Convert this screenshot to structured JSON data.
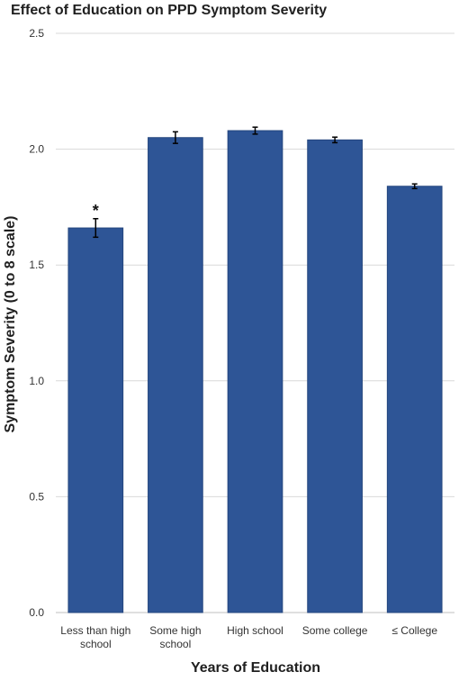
{
  "chart_data": {
    "type": "bar",
    "title": "Effect of Education on PPD Symptom Severity",
    "xlabel": "Years of Education",
    "ylabel": "Symptom Severity (0 to 8 scale)",
    "categories": [
      [
        "Less than high",
        "school"
      ],
      [
        "Some high",
        "school"
      ],
      [
        "High school"
      ],
      [
        "Some college"
      ],
      [
        "≤ College"
      ]
    ],
    "values": [
      1.66,
      2.05,
      2.08,
      2.04,
      1.84
    ],
    "error_bars": [
      0.04,
      0.025,
      0.015,
      0.012,
      0.01
    ],
    "annotations": [
      {
        "category_index": 0,
        "text": "*"
      }
    ],
    "ylim": [
      0,
      2.5
    ],
    "yticks": [
      "0.0",
      "0.5",
      "1.0",
      "1.5",
      "2.0",
      "2.5"
    ],
    "grid": true,
    "colors": {
      "bar_fill": "#2e5596",
      "bar_stroke": "#24467e",
      "grid": "#d9d9d9",
      "axis": "#bfbfbf",
      "error_bar": "#000000"
    }
  }
}
